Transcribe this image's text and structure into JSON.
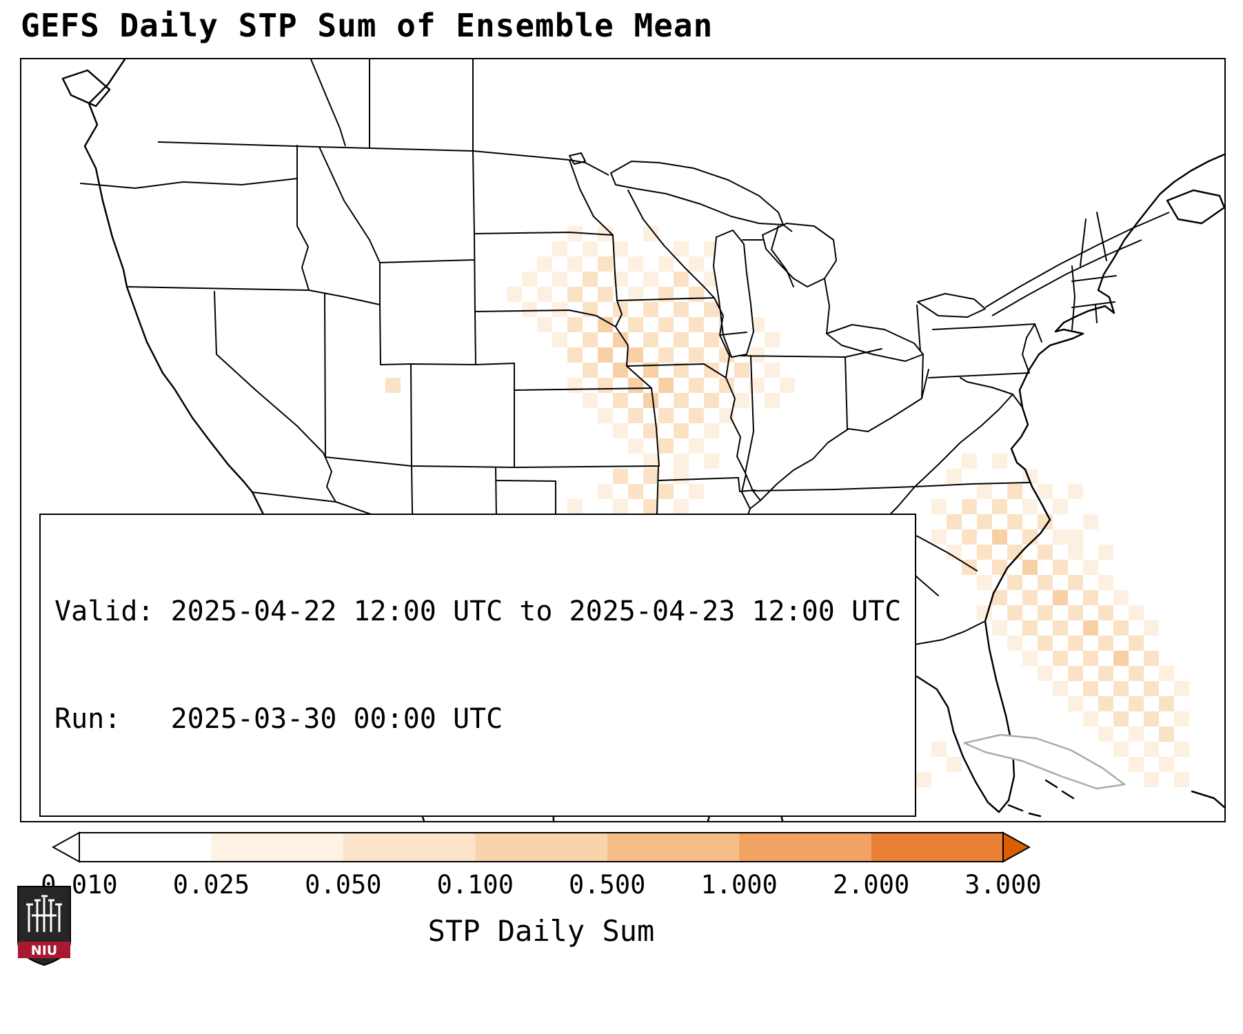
{
  "title": "GEFS Daily STP Sum of Ensemble Mean",
  "info_box": {
    "valid_line": "Valid: 2025-04-22 12:00 UTC to 2025-04-23 12:00 UTC",
    "run_line": "Run:   2025-03-30 00:00 UTC"
  },
  "colorbar": {
    "label": "STP Daily Sum",
    "ticks": [
      "0.010",
      "0.025",
      "0.050",
      "0.100",
      "0.500",
      "1.000",
      "2.000",
      "3.000"
    ],
    "segment_colors": [
      "#ffffff",
      "#fdf2e4",
      "#fbe4c9",
      "#f9d3ab",
      "#f6bd88",
      "#f2a263",
      "#ea8036"
    ],
    "left_arrow_color": "#ffffff",
    "right_arrow_color": "#d95f02"
  },
  "logo": {
    "text": "NIU",
    "shield_color": "#262626",
    "band_color": "#a6192e"
  },
  "heatmap": {
    "type": "heatmap",
    "units": "STP Daily Sum",
    "cell_size": 22,
    "palette": {
      "1": "#fdf0e0",
      "2": "#fbe2c5",
      "3": "#f8d0a6",
      "4": "#f5bd87"
    },
    "legend_breaks": [
      0.01,
      0.025,
      0.05,
      0.1,
      0.5,
      1.0,
      2.0,
      3.0
    ],
    "cells": [
      [
        36,
        11,
        1
      ],
      [
        38,
        11,
        1
      ],
      [
        41,
        11,
        1
      ],
      [
        35,
        12,
        1
      ],
      [
        37,
        12,
        1
      ],
      [
        39,
        12,
        1
      ],
      [
        43,
        12,
        1
      ],
      [
        45,
        12,
        1
      ],
      [
        34,
        13,
        1
      ],
      [
        36,
        13,
        1
      ],
      [
        38,
        13,
        2
      ],
      [
        40,
        13,
        1
      ],
      [
        42,
        13,
        1
      ],
      [
        44,
        13,
        1
      ],
      [
        46,
        13,
        1
      ],
      [
        33,
        14,
        1
      ],
      [
        35,
        14,
        1
      ],
      [
        37,
        14,
        2
      ],
      [
        39,
        14,
        1
      ],
      [
        41,
        14,
        1
      ],
      [
        43,
        14,
        2
      ],
      [
        45,
        14,
        1
      ],
      [
        47,
        14,
        1
      ],
      [
        32,
        15,
        1
      ],
      [
        34,
        15,
        1
      ],
      [
        36,
        15,
        2
      ],
      [
        38,
        15,
        2
      ],
      [
        40,
        15,
        1
      ],
      [
        42,
        15,
        2
      ],
      [
        44,
        15,
        2
      ],
      [
        46,
        15,
        1
      ],
      [
        33,
        16,
        1
      ],
      [
        35,
        16,
        1
      ],
      [
        37,
        16,
        2
      ],
      [
        39,
        16,
        2
      ],
      [
        41,
        16,
        2
      ],
      [
        43,
        16,
        2
      ],
      [
        45,
        16,
        2
      ],
      [
        47,
        16,
        1
      ],
      [
        34,
        17,
        1
      ],
      [
        36,
        17,
        2
      ],
      [
        38,
        17,
        3
      ],
      [
        40,
        17,
        2
      ],
      [
        42,
        17,
        2
      ],
      [
        44,
        17,
        2
      ],
      [
        46,
        17,
        2
      ],
      [
        48,
        17,
        1
      ],
      [
        35,
        18,
        1
      ],
      [
        37,
        18,
        2
      ],
      [
        39,
        18,
        3
      ],
      [
        41,
        18,
        2
      ],
      [
        43,
        18,
        2
      ],
      [
        45,
        18,
        2
      ],
      [
        47,
        18,
        1
      ],
      [
        49,
        18,
        1
      ],
      [
        36,
        19,
        2
      ],
      [
        38,
        19,
        3
      ],
      [
        40,
        19,
        3
      ],
      [
        42,
        19,
        2
      ],
      [
        44,
        19,
        2
      ],
      [
        46,
        19,
        2
      ],
      [
        48,
        19,
        1
      ],
      [
        37,
        20,
        2
      ],
      [
        39,
        20,
        3
      ],
      [
        41,
        20,
        3
      ],
      [
        43,
        20,
        2
      ],
      [
        45,
        20,
        2
      ],
      [
        47,
        20,
        2
      ],
      [
        49,
        20,
        1
      ],
      [
        36,
        21,
        1
      ],
      [
        38,
        21,
        2
      ],
      [
        40,
        21,
        3
      ],
      [
        42,
        21,
        3
      ],
      [
        44,
        21,
        2
      ],
      [
        46,
        21,
        2
      ],
      [
        48,
        21,
        1
      ],
      [
        50,
        21,
        1
      ],
      [
        24,
        21,
        2
      ],
      [
        37,
        22,
        1
      ],
      [
        39,
        22,
        2
      ],
      [
        41,
        22,
        3
      ],
      [
        43,
        22,
        2
      ],
      [
        45,
        22,
        2
      ],
      [
        47,
        22,
        1
      ],
      [
        49,
        22,
        1
      ],
      [
        38,
        23,
        1
      ],
      [
        40,
        23,
        2
      ],
      [
        42,
        23,
        2
      ],
      [
        44,
        23,
        2
      ],
      [
        46,
        23,
        1
      ],
      [
        39,
        24,
        1
      ],
      [
        41,
        24,
        2
      ],
      [
        43,
        24,
        2
      ],
      [
        45,
        24,
        1
      ],
      [
        40,
        25,
        1
      ],
      [
        42,
        25,
        2
      ],
      [
        44,
        25,
        1
      ],
      [
        41,
        26,
        1
      ],
      [
        43,
        26,
        1
      ],
      [
        45,
        26,
        1
      ],
      [
        39,
        27,
        2
      ],
      [
        41,
        27,
        2
      ],
      [
        43,
        27,
        1
      ],
      [
        38,
        28,
        1
      ],
      [
        40,
        28,
        2
      ],
      [
        42,
        28,
        2
      ],
      [
        44,
        28,
        1
      ],
      [
        36,
        29,
        1
      ],
      [
        39,
        29,
        1
      ],
      [
        41,
        29,
        2
      ],
      [
        43,
        29,
        1
      ],
      [
        37,
        30,
        1
      ],
      [
        40,
        30,
        1
      ],
      [
        42,
        30,
        1
      ],
      [
        44,
        30,
        1
      ],
      [
        39,
        31,
        1
      ],
      [
        41,
        31,
        1
      ],
      [
        38,
        32,
        1
      ],
      [
        42,
        32,
        1
      ],
      [
        28,
        33,
        1
      ],
      [
        29,
        34,
        1
      ],
      [
        32,
        34,
        1
      ],
      [
        27,
        35,
        1
      ],
      [
        29,
        35,
        2
      ],
      [
        28,
        36,
        2
      ],
      [
        30,
        36,
        1
      ],
      [
        34,
        36,
        1
      ],
      [
        27,
        37,
        2
      ],
      [
        29,
        37,
        3
      ],
      [
        26,
        38,
        1
      ],
      [
        28,
        38,
        2
      ],
      [
        30,
        38,
        1
      ],
      [
        33,
        38,
        1
      ],
      [
        27,
        39,
        1
      ],
      [
        29,
        39,
        2
      ],
      [
        35,
        39,
        1
      ],
      [
        28,
        40,
        2
      ],
      [
        30,
        40,
        1
      ],
      [
        29,
        41,
        1
      ],
      [
        31,
        41,
        1
      ],
      [
        34,
        41,
        1
      ],
      [
        36,
        42,
        1
      ],
      [
        37,
        38,
        1
      ],
      [
        39,
        38,
        1
      ],
      [
        38,
        39,
        2
      ],
      [
        40,
        39,
        2
      ],
      [
        42,
        39,
        1
      ],
      [
        37,
        40,
        2
      ],
      [
        39,
        40,
        2
      ],
      [
        41,
        40,
        2
      ],
      [
        43,
        40,
        1
      ],
      [
        38,
        41,
        2
      ],
      [
        40,
        41,
        2
      ],
      [
        42,
        41,
        1
      ],
      [
        44,
        41,
        1
      ],
      [
        39,
        42,
        1
      ],
      [
        41,
        42,
        2
      ],
      [
        43,
        42,
        1
      ],
      [
        45,
        42,
        1
      ],
      [
        40,
        43,
        1
      ],
      [
        42,
        43,
        2
      ],
      [
        44,
        43,
        1
      ],
      [
        41,
        44,
        1
      ],
      [
        43,
        44,
        1
      ],
      [
        47,
        36,
        1
      ],
      [
        49,
        37,
        1
      ],
      [
        51,
        37,
        1
      ],
      [
        48,
        38,
        1
      ],
      [
        50,
        38,
        2
      ],
      [
        52,
        38,
        1
      ],
      [
        47,
        39,
        1
      ],
      [
        49,
        39,
        2
      ],
      [
        51,
        39,
        1
      ],
      [
        53,
        39,
        1
      ],
      [
        48,
        40,
        1
      ],
      [
        50,
        40,
        1
      ],
      [
        52,
        40,
        2
      ],
      [
        54,
        40,
        1
      ],
      [
        49,
        41,
        1
      ],
      [
        51,
        41,
        1
      ],
      [
        53,
        41,
        1
      ],
      [
        55,
        41,
        1
      ],
      [
        50,
        42,
        1
      ],
      [
        52,
        42,
        1
      ],
      [
        54,
        42,
        1
      ],
      [
        56,
        42,
        1
      ],
      [
        51,
        43,
        1
      ],
      [
        53,
        43,
        1
      ],
      [
        55,
        43,
        1
      ],
      [
        52,
        44,
        1
      ],
      [
        54,
        44,
        1
      ],
      [
        57,
        44,
        1
      ],
      [
        58,
        45,
        1
      ],
      [
        60,
        45,
        1
      ],
      [
        61,
        46,
        1
      ],
      [
        59,
        47,
        1
      ],
      [
        62,
        26,
        1
      ],
      [
        64,
        26,
        1
      ],
      [
        61,
        27,
        1
      ],
      [
        66,
        27,
        1
      ],
      [
        63,
        28,
        1
      ],
      [
        65,
        28,
        2
      ],
      [
        67,
        28,
        1
      ],
      [
        69,
        28,
        1
      ],
      [
        60,
        29,
        1
      ],
      [
        62,
        29,
        2
      ],
      [
        64,
        29,
        2
      ],
      [
        66,
        29,
        1
      ],
      [
        68,
        29,
        1
      ],
      [
        61,
        30,
        2
      ],
      [
        63,
        30,
        2
      ],
      [
        65,
        30,
        2
      ],
      [
        67,
        30,
        2
      ],
      [
        70,
        30,
        1
      ],
      [
        60,
        31,
        1
      ],
      [
        62,
        31,
        2
      ],
      [
        64,
        31,
        3
      ],
      [
        66,
        31,
        2
      ],
      [
        68,
        31,
        1
      ],
      [
        69,
        31,
        1
      ],
      [
        61,
        32,
        1
      ],
      [
        63,
        32,
        2
      ],
      [
        65,
        32,
        2
      ],
      [
        67,
        32,
        2
      ],
      [
        69,
        32,
        1
      ],
      [
        71,
        32,
        1
      ],
      [
        62,
        33,
        2
      ],
      [
        64,
        33,
        2
      ],
      [
        66,
        33,
        3
      ],
      [
        68,
        33,
        2
      ],
      [
        70,
        33,
        1
      ],
      [
        63,
        34,
        1
      ],
      [
        65,
        34,
        2
      ],
      [
        67,
        34,
        2
      ],
      [
        69,
        34,
        2
      ],
      [
        71,
        34,
        1
      ],
      [
        64,
        35,
        2
      ],
      [
        66,
        35,
        2
      ],
      [
        68,
        35,
        3
      ],
      [
        70,
        35,
        2
      ],
      [
        72,
        35,
        1
      ],
      [
        63,
        36,
        1
      ],
      [
        65,
        36,
        2
      ],
      [
        67,
        36,
        2
      ],
      [
        69,
        36,
        2
      ],
      [
        71,
        36,
        2
      ],
      [
        73,
        36,
        1
      ],
      [
        64,
        37,
        1
      ],
      [
        66,
        37,
        2
      ],
      [
        68,
        37,
        2
      ],
      [
        70,
        37,
        3
      ],
      [
        72,
        37,
        2
      ],
      [
        74,
        37,
        1
      ],
      [
        65,
        38,
        1
      ],
      [
        67,
        38,
        2
      ],
      [
        69,
        38,
        2
      ],
      [
        71,
        38,
        2
      ],
      [
        73,
        38,
        2
      ],
      [
        66,
        39,
        1
      ],
      [
        68,
        39,
        2
      ],
      [
        70,
        39,
        2
      ],
      [
        72,
        39,
        3
      ],
      [
        74,
        39,
        2
      ],
      [
        67,
        40,
        1
      ],
      [
        69,
        40,
        2
      ],
      [
        71,
        40,
        2
      ],
      [
        73,
        40,
        2
      ],
      [
        75,
        40,
        1
      ],
      [
        68,
        41,
        1
      ],
      [
        70,
        41,
        2
      ],
      [
        72,
        41,
        2
      ],
      [
        74,
        41,
        2
      ],
      [
        76,
        41,
        1
      ],
      [
        69,
        42,
        1
      ],
      [
        71,
        42,
        2
      ],
      [
        73,
        42,
        2
      ],
      [
        75,
        42,
        2
      ],
      [
        70,
        43,
        1
      ],
      [
        72,
        43,
        2
      ],
      [
        74,
        43,
        2
      ],
      [
        76,
        43,
        1
      ],
      [
        71,
        44,
        1
      ],
      [
        73,
        44,
        1
      ],
      [
        75,
        44,
        2
      ],
      [
        72,
        45,
        1
      ],
      [
        74,
        45,
        1
      ],
      [
        76,
        45,
        1
      ],
      [
        73,
        46,
        1
      ],
      [
        75,
        46,
        1
      ],
      [
        74,
        47,
        1
      ],
      [
        76,
        47,
        1
      ]
    ]
  }
}
